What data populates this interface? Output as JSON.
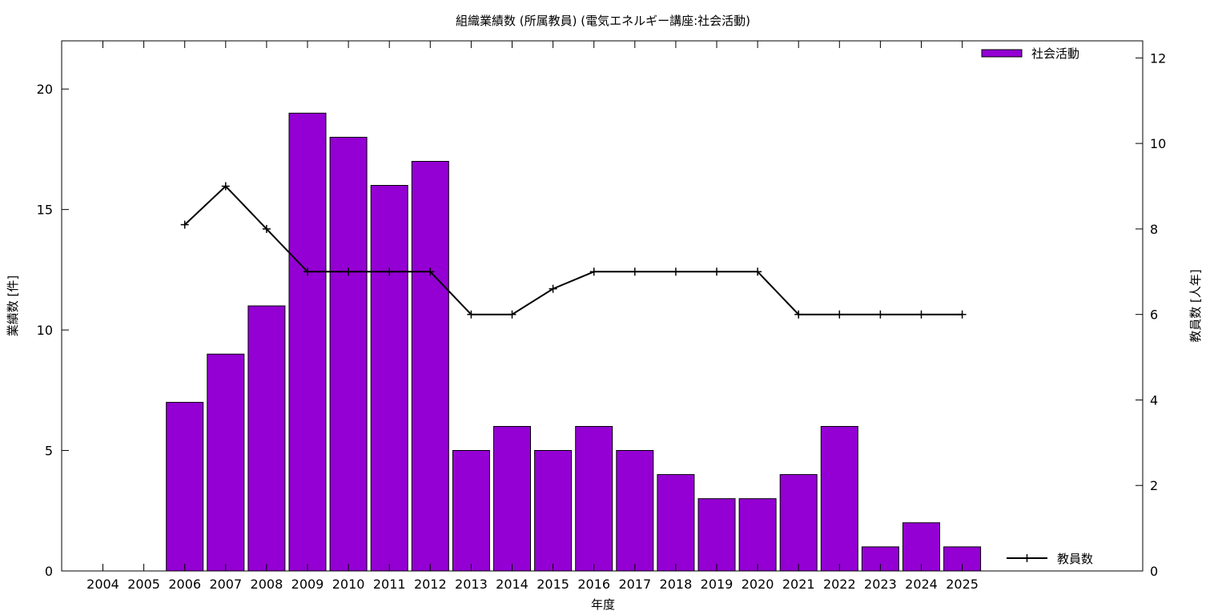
{
  "chart_data": {
    "type": "bar",
    "title": "組織業績数 (所属教員) (電気エネルギー講座:社会活動)",
    "xlabel": "年度",
    "ylabel": "業績数 [件]",
    "y2label": "教員数 [人年]",
    "categories": [
      "2004",
      "2005",
      "2006",
      "2007",
      "2008",
      "2009",
      "2010",
      "2011",
      "2012",
      "2013",
      "2014",
      "2015",
      "2016",
      "2017",
      "2018",
      "2019",
      "2020",
      "2021",
      "2022",
      "2023",
      "2024",
      "2025"
    ],
    "ylim": [
      0,
      22
    ],
    "y2lim": [
      0,
      12.4
    ],
    "yticks": [
      0,
      5,
      10,
      15,
      20
    ],
    "y2ticks": [
      0,
      2,
      4,
      6,
      8,
      10,
      12
    ],
    "grid": false,
    "series": [
      {
        "name": "社会活動",
        "type": "bar",
        "axis": "left",
        "color": "#9400d3",
        "values": [
          0,
          0,
          7,
          9,
          11,
          19,
          18,
          16,
          17,
          5,
          6,
          5,
          6,
          5,
          4,
          3,
          3,
          4,
          6,
          1,
          2,
          1
        ]
      },
      {
        "name": "教員数",
        "type": "line",
        "axis": "right",
        "color": "#000000",
        "values": [
          null,
          null,
          8.1,
          9,
          8,
          7,
          7,
          7,
          7,
          6,
          6,
          6.6,
          7,
          7,
          7,
          7,
          7,
          6,
          6,
          6,
          6,
          6
        ]
      }
    ],
    "legend": {
      "bar_position": "top-right",
      "line_position": "bottom-right"
    }
  }
}
